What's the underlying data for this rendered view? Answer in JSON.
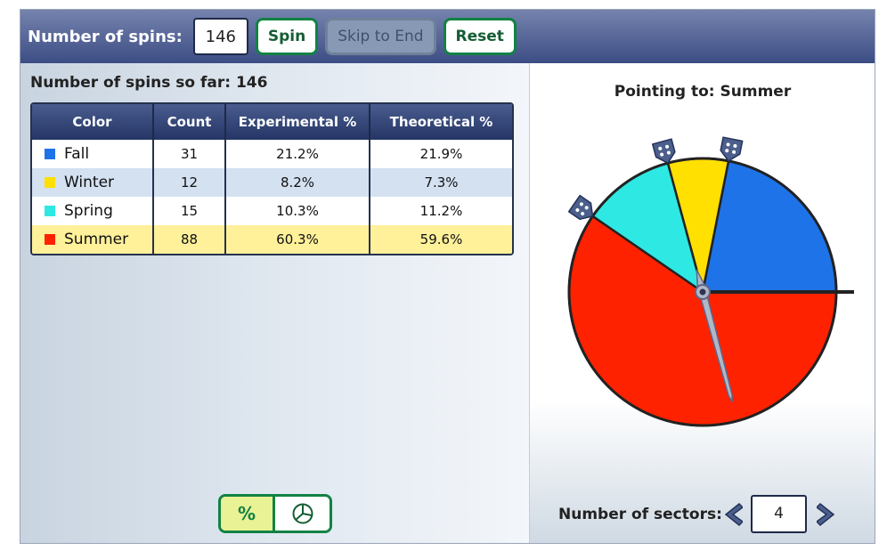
{
  "toolbar": {
    "spins_label": "Number of spins:",
    "spins_value": "146",
    "spin_label": "Spin",
    "skip_label": "Skip to End",
    "reset_label": "Reset"
  },
  "results": {
    "spins_so_far": "Number of spins so far: 146",
    "headers": [
      "Color",
      "Count",
      "Experimental %",
      "Theoretical %"
    ],
    "rows": [
      {
        "name": "Fall",
        "count": "31",
        "experimental": "21.2%",
        "theoretical": "21.9%",
        "color": "#1e73e8"
      },
      {
        "name": "Winter",
        "count": "12",
        "experimental": "8.2%",
        "theoretical": "7.3%",
        "color": "#ffe000"
      },
      {
        "name": "Spring",
        "count": "15",
        "experimental": "10.3%",
        "theoretical": "11.2%",
        "color": "#2ee8e3"
      },
      {
        "name": "Summer",
        "count": "88",
        "experimental": "60.3%",
        "theoretical": "59.6%",
        "color": "#ff2200"
      }
    ]
  },
  "view_toggle": {
    "percent_label": "%",
    "pie_icon": "pie-chart-icon",
    "selected": "percent"
  },
  "spinner": {
    "pointing": "Pointing to: Summer",
    "handles_icon": "drag-handle-icon",
    "pointer_icon": "needle-pointer-icon",
    "sectors": [
      {
        "name": "Fall",
        "fraction": 0.219,
        "color": "#1e73e8"
      },
      {
        "name": "Winter",
        "fraction": 0.073,
        "color": "#ffe000"
      },
      {
        "name": "Spring",
        "fraction": 0.112,
        "color": "#2ee8e3"
      },
      {
        "name": "Summer",
        "fraction": 0.596,
        "color": "#ff2200"
      }
    ],
    "needle_angle_deg": 105
  },
  "sectors_control": {
    "label": "Number of sectors:",
    "value": "4",
    "prev_icon": "chevron-left-icon",
    "next_icon": "chevron-right-icon"
  }
}
